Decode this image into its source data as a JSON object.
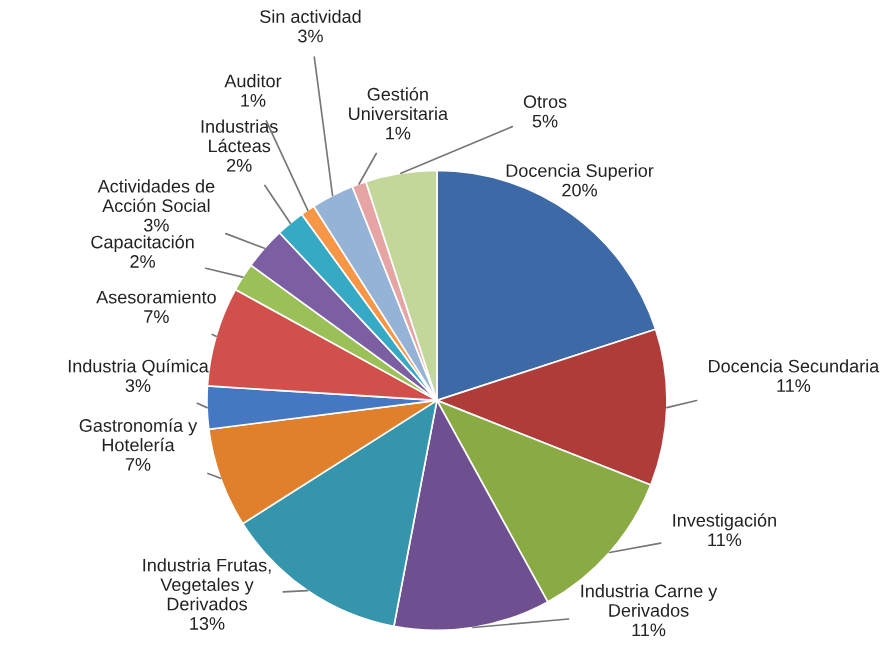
{
  "chart_data": {
    "type": "pie",
    "categories": [
      "Docencia Superior",
      "Docencia Secundaria",
      "Investigación",
      "Industria Carne y\nDerivados",
      "Industria Frutas,\nVegetales y\nDerivados",
      "Gastronomía y\nHotelería",
      "Industria Química",
      "Asesoramiento",
      "Capacitación",
      "Actividades de\nAcción Social",
      "Industrias\nLácteas",
      "Auditor",
      "Sin actividad",
      "Gestión\nUniversitaria",
      "Otros"
    ],
    "values": [
      20,
      11,
      11,
      11,
      13,
      7,
      3,
      7,
      2,
      3,
      2,
      1,
      3,
      1,
      5
    ],
    "value_labels": [
      "20%",
      "11%",
      "11%",
      "11%",
      "13%",
      "7%",
      "3%",
      "7%",
      "2%",
      "3%",
      "2%",
      "1%",
      "3%",
      "1%",
      "5%"
    ],
    "colors": [
      "#3d6aa6",
      "#b03c3a",
      "#8aab44",
      "#6e4f8f",
      "#3595ac",
      "#e07f2c",
      "#4677c2",
      "#d2504c",
      "#9bc057",
      "#7c5fa3",
      "#36aac4",
      "#f79646",
      "#95b3d7",
      "#e6a5a4",
      "#c4d79b"
    ]
  }
}
